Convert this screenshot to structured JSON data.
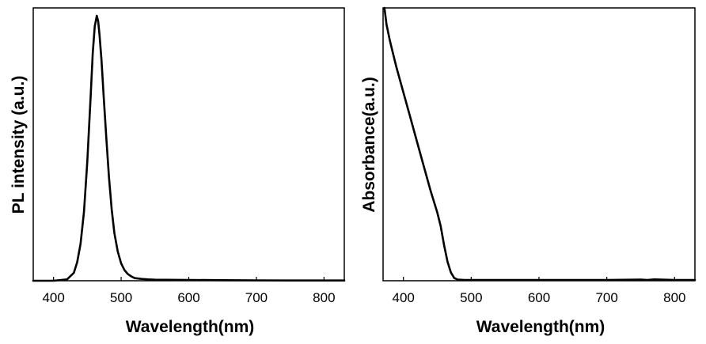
{
  "chart_data": [
    {
      "type": "line",
      "title": "",
      "xlabel": "Wavelength(nm)",
      "ylabel": "PL intensity (a.u.)",
      "xlim": [
        370,
        830
      ],
      "ylim": [
        0,
        1.03
      ],
      "x_ticks": [
        400,
        500,
        600,
        700,
        800
      ],
      "y_ticks": [],
      "grid": false,
      "series": [
        {
          "x": [
            370,
            400,
            420,
            430,
            435,
            440,
            445,
            450,
            455,
            458,
            461,
            464,
            466,
            468,
            471,
            474,
            478,
            482,
            486,
            490,
            495,
            500,
            505,
            510,
            515,
            520,
            530,
            540,
            550,
            600,
            650,
            700,
            750,
            800,
            830
          ],
          "values": [
            0,
            0,
            0.005,
            0.03,
            0.07,
            0.14,
            0.26,
            0.45,
            0.7,
            0.86,
            0.96,
            1.0,
            0.98,
            0.93,
            0.83,
            0.7,
            0.54,
            0.39,
            0.27,
            0.18,
            0.11,
            0.065,
            0.04,
            0.025,
            0.016,
            0.01,
            0.007,
            0.005,
            0.004,
            0.003,
            0.002,
            0.0015,
            0.001,
            0.001,
            0.001
          ]
        }
      ]
    },
    {
      "type": "line",
      "title": "",
      "xlabel": "Wavelength(nm)",
      "ylabel": "Absorbance(a.u.)",
      "xlim": [
        370,
        830
      ],
      "ylim": [
        0,
        1.0
      ],
      "x_ticks": [
        400,
        500,
        600,
        700,
        800
      ],
      "y_ticks": [],
      "grid": false,
      "series": [
        {
          "x": [
            372,
            375,
            380,
            385,
            390,
            400,
            410,
            420,
            430,
            440,
            450,
            455,
            460,
            465,
            470,
            475,
            480,
            490,
            500,
            600,
            700,
            750,
            760,
            770,
            800,
            830
          ],
          "values": [
            1.0,
            0.94,
            0.88,
            0.83,
            0.78,
            0.69,
            0.6,
            0.51,
            0.42,
            0.33,
            0.25,
            0.2,
            0.13,
            0.07,
            0.03,
            0.01,
            0.004,
            0.003,
            0.003,
            0.003,
            0.003,
            0.004,
            0.003,
            0.005,
            0.003,
            0.003
          ]
        }
      ]
    }
  ]
}
